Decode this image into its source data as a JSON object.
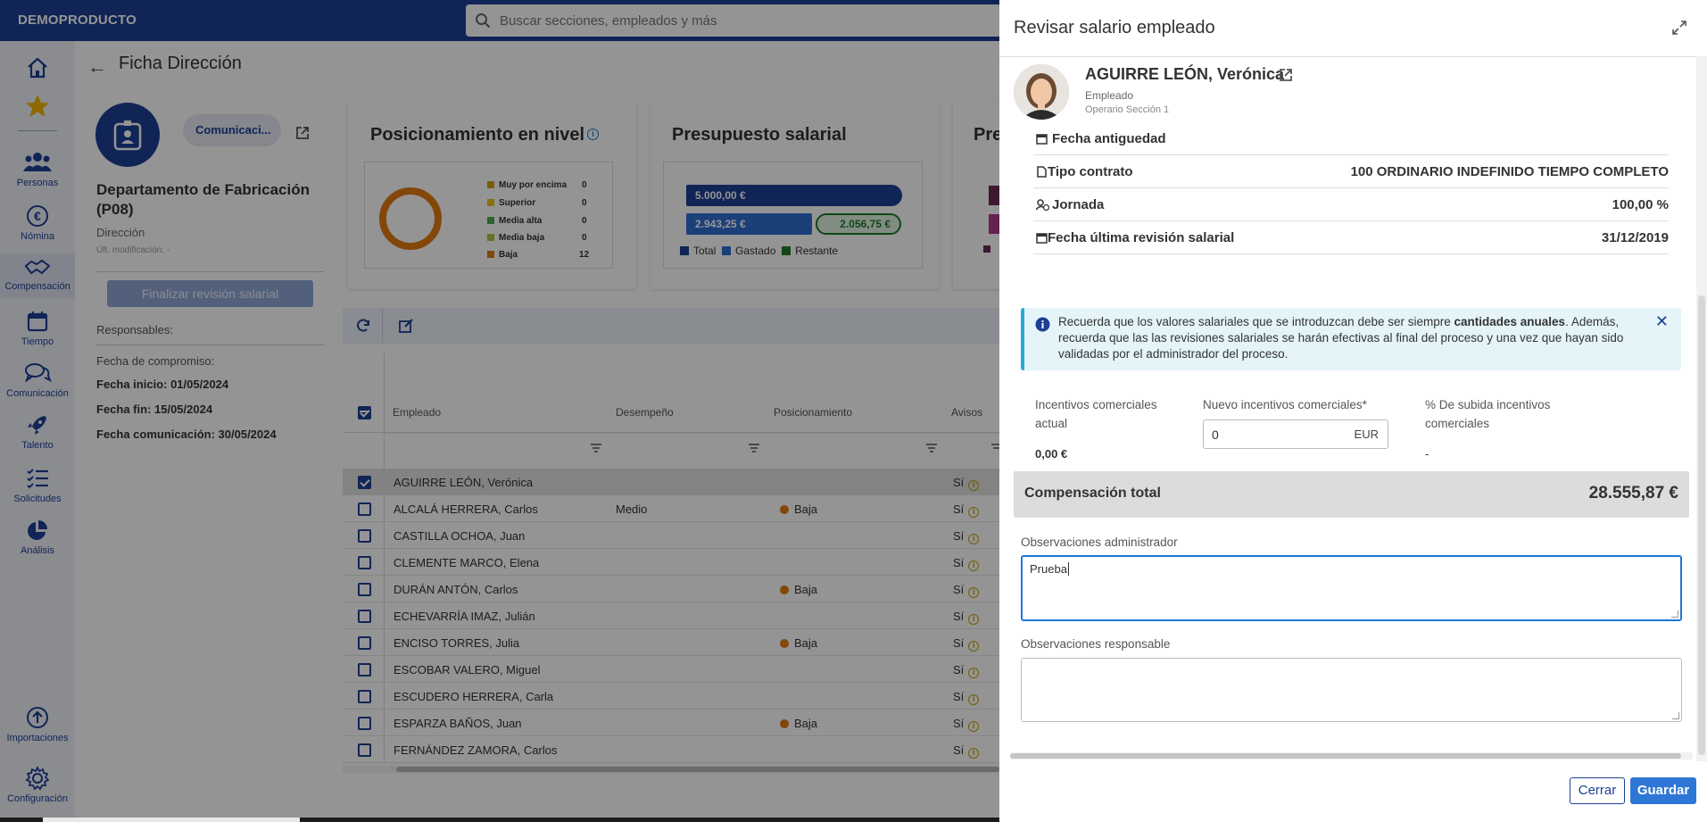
{
  "app": {
    "brand": "DEMOPRODUCTO"
  },
  "search": {
    "placeholder": "Buscar secciones, empleados y más"
  },
  "nav": [
    {
      "label": "",
      "icon": "home-icon"
    },
    {
      "label": "",
      "icon": "star-icon"
    },
    {
      "label": "Personas",
      "icon": "people-icon"
    },
    {
      "label": "Nómina",
      "icon": "euro-icon"
    },
    {
      "label": "Compensación",
      "icon": "handshake-icon",
      "active": true
    },
    {
      "label": "Tiempo",
      "icon": "calendar-icon"
    },
    {
      "label": "Comunicación",
      "icon": "chat-icon"
    },
    {
      "label": "Talento",
      "icon": "rocket-icon"
    },
    {
      "label": "Solicitudes",
      "icon": "checklist-icon"
    },
    {
      "label": "Análisis",
      "icon": "pie-icon"
    },
    {
      "label": "Importaciones",
      "icon": "upload-icon"
    },
    {
      "label": "Configuración",
      "icon": "gear-icon"
    }
  ],
  "page": {
    "title": "Ficha Dirección",
    "chip": "Comunicaci...",
    "dept_name": "Departamento de Fabricación (P08)",
    "dept_sub": "Dirección",
    "last_mod": "Últ. modificación: -",
    "finalize_button": "Finalizar revisión salarial",
    "responsables": "Responsables:",
    "fecha_compromiso": "Fecha de compromiso:",
    "fecha_inicio": "Fecha inicio: 01/05/2024",
    "fecha_fin": "Fecha fin: 15/05/2024",
    "fecha_comunicacion": "Fecha comunicación: 30/05/2024"
  },
  "cards": {
    "positioning": {
      "title": "Posicionamiento en nivel",
      "legend": [
        {
          "label": "Muy por encima",
          "value": "0",
          "color": "#d4a017"
        },
        {
          "label": "Superior",
          "value": "0",
          "color": "#e8c21a"
        },
        {
          "label": "Media alta",
          "value": "0",
          "color": "#4caf50"
        },
        {
          "label": "Media baja",
          "value": "0",
          "color": "#a8c83a"
        },
        {
          "label": "Baja",
          "value": "12",
          "color": "#e07a10"
        }
      ]
    },
    "budget": {
      "title": "Presupuesto salarial",
      "total_value": "5.000,00 €",
      "spent_value": "2.943,25 €",
      "rest_value": "2.056,75 €",
      "legend": [
        {
          "label": "Total",
          "color": "#1c3f94"
        },
        {
          "label": "Gastado",
          "color": "#2f6fd1"
        },
        {
          "label": "Restante",
          "color": "#1f7a2a"
        }
      ]
    },
    "third": {
      "title": "Pre"
    }
  },
  "table": {
    "columns": [
      "Empleado",
      "Desempeño",
      "Posicionamiento",
      "Avisos"
    ],
    "rows": [
      {
        "name": "AGUIRRE LEÓN, Verónica",
        "performance": "",
        "positioning": "",
        "avisos": "Sí",
        "checked": true
      },
      {
        "name": "ALCALÁ HERRERA, Carlos",
        "performance": "Medio",
        "positioning": "Baja",
        "avisos": "Sí",
        "checked": false
      },
      {
        "name": "CASTILLA OCHOA, Juan",
        "performance": "",
        "positioning": "",
        "avisos": "Sí",
        "checked": false
      },
      {
        "name": "CLEMENTE MARCO, Elena",
        "performance": "",
        "positioning": "",
        "avisos": "Sí",
        "checked": false
      },
      {
        "name": "DURÁN ANTÓN, Carlos",
        "performance": "",
        "positioning": "Baja",
        "avisos": "Sí",
        "checked": false
      },
      {
        "name": "ECHEVARRÍA IMAZ, Julián",
        "performance": "",
        "positioning": "",
        "avisos": "Sí",
        "checked": false
      },
      {
        "name": "ENCISO TORRES, Julia",
        "performance": "",
        "positioning": "Baja",
        "avisos": "Sí",
        "checked": false
      },
      {
        "name": "ESCOBAR VALERO, Miguel",
        "performance": "",
        "positioning": "",
        "avisos": "Sí",
        "checked": false
      },
      {
        "name": "ESCUDERO HERRERA, Carla",
        "performance": "",
        "positioning": "",
        "avisos": "Sí",
        "checked": false
      },
      {
        "name": "ESPARZA BAÑOS, Juan",
        "performance": "",
        "positioning": "Baja",
        "avisos": "Sí",
        "checked": false
      },
      {
        "name": "FERNÁNDEZ ZAMORA, Carlos",
        "performance": "",
        "positioning": "",
        "avisos": "Sí",
        "checked": false
      }
    ]
  },
  "panel": {
    "title": "Revisar salario empleado",
    "employee": {
      "name": "AGUIRRE LEÓN, Verónica",
      "role": "Empleado",
      "unit": "Operario Sección 1"
    },
    "info": [
      {
        "label": "Fecha antiguedad",
        "value": "",
        "icon": "calendar-icon"
      },
      {
        "label": "Tipo contrato",
        "value": "100 ORDINARIO INDEFINIDO TIEMPO COMPLETO",
        "icon": "document-icon"
      },
      {
        "label": "Jornada",
        "value": "100,00 %",
        "icon": "user-clock-icon"
      },
      {
        "label": "Fecha última revisión salarial",
        "value": "31/12/2019",
        "icon": "calendar-icon"
      }
    ],
    "alert": {
      "text_1": "Recuerda que los valores salariales que se introduzcan debe ser siempre ",
      "text_bold": "cantidades anuales",
      "text_2": ". Además, recuerda que las las revisiones salariales se harán efectivas al final del proceso y una vez que hayan sido validadas por el administrador del proceso."
    },
    "fields": {
      "current_label": "Incentivos comerciales actual",
      "current_value": "0,00 €",
      "new_label": "Nuevo incentivos comerciales*",
      "new_value": "0",
      "new_unit": "EUR",
      "percent_label": "% De subida incentivos comerciales",
      "percent_value": "-"
    },
    "total": {
      "label": "Compensación total",
      "value": "28.555,87 €"
    },
    "obs_admin": {
      "label": "Observaciones administrador",
      "value": "Prueba"
    },
    "obs_resp": {
      "label": "Observaciones responsable",
      "value": ""
    },
    "buttons": {
      "cancel": "Cerrar",
      "save": "Guardar"
    }
  }
}
